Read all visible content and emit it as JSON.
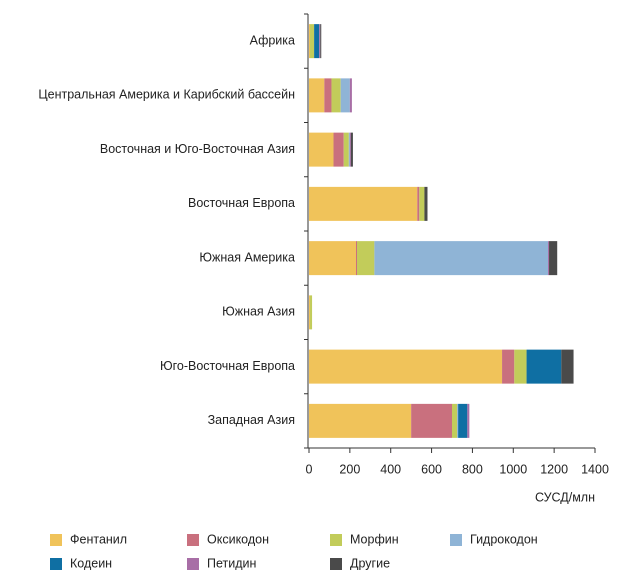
{
  "chart_data": {
    "type": "stacked-barh",
    "categories": [
      "Африка",
      "Центральная Америка и Карибский бассейн",
      "Восточная и Юго-Восточная Азия",
      "Восточная Европа",
      "Южная Америка",
      "Южная Азия",
      "Юго-Восточная Европа",
      "Западная Азия"
    ],
    "series": [
      {
        "name": "Фентанил",
        "color": "#f0c35a",
        "values": [
          5,
          75,
          120,
          530,
          230,
          5,
          945,
          500
        ]
      },
      {
        "name": "Оксикодон",
        "color": "#c9707e",
        "values": [
          0,
          35,
          50,
          10,
          5,
          0,
          60,
          200
        ]
      },
      {
        "name": "Морфин",
        "color": "#c2cc5a",
        "values": [
          20,
          45,
          25,
          25,
          85,
          10,
          60,
          25
        ]
      },
      {
        "name": "Гидрокодон",
        "color": "#8fb4d6",
        "values": [
          0,
          45,
          5,
          0,
          850,
          0,
          0,
          5
        ]
      },
      {
        "name": "Кодеин",
        "color": "#0f6fa3",
        "values": [
          25,
          0,
          0,
          0,
          0,
          0,
          170,
          45
        ]
      },
      {
        "name": "Петидин",
        "color": "#a86ea6",
        "values": [
          5,
          10,
          5,
          0,
          5,
          0,
          0,
          10
        ]
      },
      {
        "name": "Другие",
        "color": "#4a4a4a",
        "values": [
          5,
          0,
          10,
          15,
          40,
          0,
          60,
          0
        ]
      }
    ],
    "xlabel": "СУСД/млн",
    "xlim": [
      0,
      1400
    ],
    "xticks": [
      0,
      200,
      400,
      600,
      800,
      1000,
      1200,
      1400
    ]
  }
}
